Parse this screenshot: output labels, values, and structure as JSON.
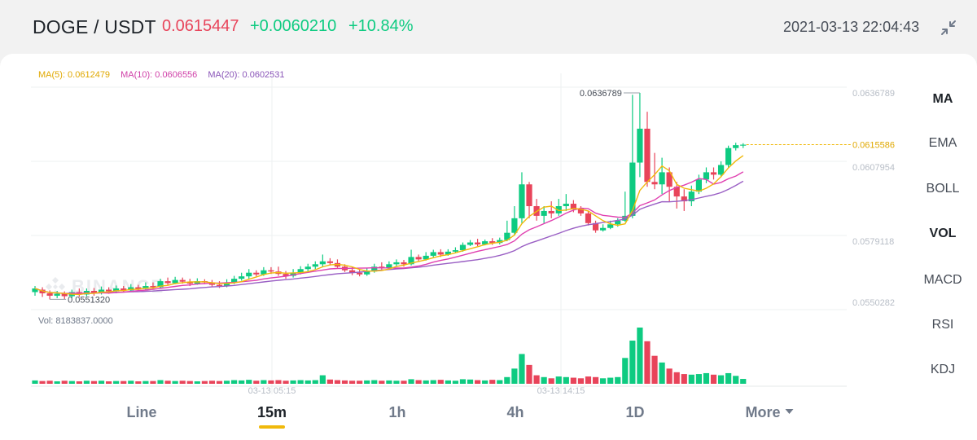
{
  "header": {
    "pair": "DOGE / USDT",
    "price": "0.0615447",
    "change": "+0.0060210",
    "change_pct": "+10.84%",
    "datetime": "2021-03-13 22:04:43",
    "collapse_icon": "collapse-arrows-icon"
  },
  "colors": {
    "up": "#0ecb81",
    "down": "#e8445a",
    "ma5": "#f0b90b",
    "ma10": "#e040b0",
    "ma20": "#9a5fc4",
    "accent": "#f0b90b"
  },
  "indicators": {
    "ma5": "MA(5): 0.0612479",
    "ma10": "MA(10): 0.0606556",
    "ma20": "MA(20): 0.0602531",
    "vol": "Vol: 8183837.0000"
  },
  "watermark": "BINANCE",
  "price_axis": [
    "0.0636789",
    "0.0607954",
    "0.0579118",
    "0.0550282"
  ],
  "current_price_label": "0.0615586",
  "high_label": "0.0636789",
  "low_label": "0.0551320",
  "time_labels": [
    "03-13 05:15",
    "03-13 14:15"
  ],
  "side_menu": [
    "MA",
    "EMA",
    "BOLL",
    "VOL",
    "MACD",
    "RSI",
    "KDJ"
  ],
  "timeframes": [
    "Line",
    "15m",
    "1h",
    "4h",
    "1D",
    "More"
  ],
  "chart_data": {
    "type": "candlestick",
    "price_range": [
      0.0550282,
      0.0636789
    ],
    "candles": [
      [
        0.05545,
        0.0556,
        0.0557,
        0.0553,
        1.1
      ],
      [
        0.05555,
        0.0554,
        0.05565,
        0.05525,
        0.9
      ],
      [
        0.0554,
        0.0553,
        0.05552,
        0.05515,
        1.0
      ],
      [
        0.0553,
        0.05538,
        0.0555,
        0.0552,
        0.8
      ],
      [
        0.05538,
        0.05528,
        0.05548,
        0.05515,
        1.0
      ],
      [
        0.05528,
        0.05545,
        0.05555,
        0.0552,
        0.9
      ],
      [
        0.05545,
        0.05535,
        0.0556,
        0.05525,
        0.8
      ],
      [
        0.05535,
        0.0555,
        0.0556,
        0.05528,
        1.0
      ],
      [
        0.0555,
        0.0554,
        0.05562,
        0.0553,
        0.9
      ],
      [
        0.0554,
        0.05555,
        0.05568,
        0.05535,
        1.0
      ],
      [
        0.05555,
        0.05548,
        0.05565,
        0.05538,
        0.8
      ],
      [
        0.05548,
        0.0556,
        0.05572,
        0.0554,
        0.9
      ],
      [
        0.0556,
        0.05552,
        0.0557,
        0.05545,
        0.9
      ],
      [
        0.05552,
        0.05565,
        0.05578,
        0.05548,
        1.0
      ],
      [
        0.05565,
        0.05558,
        0.05575,
        0.0555,
        0.8
      ],
      [
        0.05558,
        0.0557,
        0.05585,
        0.05552,
        0.9
      ],
      [
        0.0557,
        0.05565,
        0.05585,
        0.05558,
        0.9
      ],
      [
        0.05565,
        0.0559,
        0.056,
        0.0556,
        1.2
      ],
      [
        0.0559,
        0.05582,
        0.05605,
        0.05575,
        1.0
      ],
      [
        0.05582,
        0.05595,
        0.05608,
        0.05578,
        0.9
      ],
      [
        0.05595,
        0.05588,
        0.05605,
        0.0558,
        1.0
      ],
      [
        0.05588,
        0.0558,
        0.056,
        0.0557,
        0.9
      ],
      [
        0.0558,
        0.0559,
        0.05602,
        0.05575,
        0.8
      ],
      [
        0.0559,
        0.05585,
        0.05598,
        0.05578,
        0.9
      ],
      [
        0.05585,
        0.05575,
        0.05595,
        0.05568,
        1.0
      ],
      [
        0.05575,
        0.0557,
        0.0559,
        0.05562,
        0.9
      ],
      [
        0.0557,
        0.05585,
        0.05598,
        0.05565,
        1.0
      ],
      [
        0.05585,
        0.056,
        0.05612,
        0.05578,
        1.2
      ],
      [
        0.056,
        0.0561,
        0.05625,
        0.05592,
        1.1
      ],
      [
        0.0561,
        0.05625,
        0.0564,
        0.056,
        1.3
      ],
      [
        0.05625,
        0.05618,
        0.05635,
        0.0561,
        1.0
      ],
      [
        0.05618,
        0.05635,
        0.05648,
        0.05612,
        1.2
      ],
      [
        0.05635,
        0.0563,
        0.05648,
        0.0562,
        1.1
      ],
      [
        0.0563,
        0.0562,
        0.0565,
        0.05612,
        1.2
      ],
      [
        0.0562,
        0.05612,
        0.05632,
        0.056,
        1.0
      ],
      [
        0.05612,
        0.05625,
        0.0564,
        0.05605,
        1.1
      ],
      [
        0.05625,
        0.0564,
        0.05652,
        0.05618,
        1.2
      ],
      [
        0.0564,
        0.0565,
        0.05662,
        0.0563,
        1.1
      ],
      [
        0.0565,
        0.0566,
        0.05672,
        0.0564,
        1.2
      ],
      [
        0.0566,
        0.05672,
        0.057,
        0.05648,
        2.8
      ],
      [
        0.05672,
        0.05665,
        0.05685,
        0.05655,
        1.4
      ],
      [
        0.05665,
        0.0565,
        0.0568,
        0.05645,
        1.2
      ],
      [
        0.0565,
        0.05635,
        0.0566,
        0.05628,
        1.1
      ],
      [
        0.05635,
        0.05625,
        0.05648,
        0.05615,
        1.0
      ],
      [
        0.05625,
        0.05618,
        0.0564,
        0.0561,
        1.0
      ],
      [
        0.05618,
        0.0563,
        0.05645,
        0.05612,
        1.1
      ],
      [
        0.0563,
        0.0565,
        0.05662,
        0.05625,
        1.2
      ],
      [
        0.0565,
        0.05645,
        0.05668,
        0.05638,
        1.0
      ],
      [
        0.05645,
        0.0566,
        0.05672,
        0.0564,
        1.1
      ],
      [
        0.0566,
        0.05668,
        0.0568,
        0.05652,
        1.0
      ],
      [
        0.05668,
        0.0566,
        0.05678,
        0.0565,
        1.0
      ],
      [
        0.0566,
        0.0569,
        0.0572,
        0.05655,
        1.5
      ],
      [
        0.0569,
        0.0568,
        0.057,
        0.05672,
        1.2
      ],
      [
        0.0568,
        0.05695,
        0.0571,
        0.05675,
        1.1
      ],
      [
        0.05695,
        0.0571,
        0.0572,
        0.05685,
        1.2
      ],
      [
        0.0571,
        0.057,
        0.05722,
        0.0569,
        1.3
      ],
      [
        0.057,
        0.05712,
        0.05722,
        0.05695,
        1.1
      ],
      [
        0.05712,
        0.05718,
        0.0573,
        0.05705,
        1.0
      ],
      [
        0.05718,
        0.0574,
        0.0575,
        0.05712,
        1.5
      ],
      [
        0.0574,
        0.0575,
        0.0576,
        0.05735,
        1.4
      ],
      [
        0.0575,
        0.05742,
        0.05765,
        0.05735,
        1.2
      ],
      [
        0.05742,
        0.05755,
        0.05762,
        0.05738,
        1.1
      ],
      [
        0.05755,
        0.05748,
        0.05768,
        0.0574,
        1.3
      ],
      [
        0.05748,
        0.0576,
        0.0577,
        0.05742,
        1.2
      ],
      [
        0.0576,
        0.0579,
        0.0584,
        0.05755,
        2.2
      ],
      [
        0.0579,
        0.0585,
        0.059,
        0.0578,
        5.0
      ],
      [
        0.0585,
        0.0599,
        0.0604,
        0.0583,
        9.8
      ],
      [
        0.0599,
        0.059,
        0.06,
        0.0585,
        6.2
      ],
      [
        0.059,
        0.0586,
        0.0593,
        0.0584,
        2.8
      ],
      [
        0.0586,
        0.0588,
        0.059,
        0.0583,
        2.2
      ],
      [
        0.0588,
        0.0587,
        0.0592,
        0.0585,
        1.8
      ],
      [
        0.0587,
        0.059,
        0.0593,
        0.0586,
        2.4
      ],
      [
        0.059,
        0.0591,
        0.0595,
        0.0588,
        2.2
      ],
      [
        0.0591,
        0.0589,
        0.05925,
        0.05875,
        2.0
      ],
      [
        0.0589,
        0.0587,
        0.059,
        0.0586,
        1.8
      ],
      [
        0.0587,
        0.0583,
        0.0588,
        0.0582,
        2.4
      ],
      [
        0.0583,
        0.058,
        0.0584,
        0.0579,
        2.2
      ],
      [
        0.058,
        0.0581,
        0.05825,
        0.05795,
        1.8
      ],
      [
        0.0581,
        0.05825,
        0.0584,
        0.05805,
        2.0
      ],
      [
        0.05825,
        0.0584,
        0.0585,
        0.05815,
        2.2
      ],
      [
        0.0584,
        0.0586,
        0.0596,
        0.05835,
        8.5
      ],
      [
        0.0586,
        0.0608,
        0.0636,
        0.0585,
        14.2
      ],
      [
        0.0608,
        0.0622,
        0.06368,
        0.0602,
        18.5
      ],
      [
        0.0622,
        0.06,
        0.0629,
        0.0598,
        14.0
      ],
      [
        0.06,
        0.0599,
        0.0612,
        0.0597,
        9.2
      ],
      [
        0.0599,
        0.0604,
        0.061,
        0.0595,
        7.0
      ],
      [
        0.0604,
        0.0598,
        0.0606,
        0.0592,
        5.0
      ],
      [
        0.0598,
        0.0594,
        0.06,
        0.0589,
        3.8
      ],
      [
        0.0594,
        0.0592,
        0.0597,
        0.0588,
        3.2
      ],
      [
        0.0592,
        0.0596,
        0.05985,
        0.059,
        3.0
      ],
      [
        0.0596,
        0.0601,
        0.0603,
        0.0595,
        3.2
      ],
      [
        0.0601,
        0.0604,
        0.0606,
        0.05995,
        3.5
      ],
      [
        0.0604,
        0.0603,
        0.0606,
        0.0601,
        3.0
      ],
      [
        0.0603,
        0.0607,
        0.06085,
        0.0602,
        2.8
      ],
      [
        0.0607,
        0.0614,
        0.0615,
        0.0606,
        3.5
      ],
      [
        0.0614,
        0.06152,
        0.06162,
        0.0613,
        2.6
      ],
      [
        0.06152,
        0.06154,
        0.0616,
        0.0614,
        1.6
      ]
    ]
  }
}
